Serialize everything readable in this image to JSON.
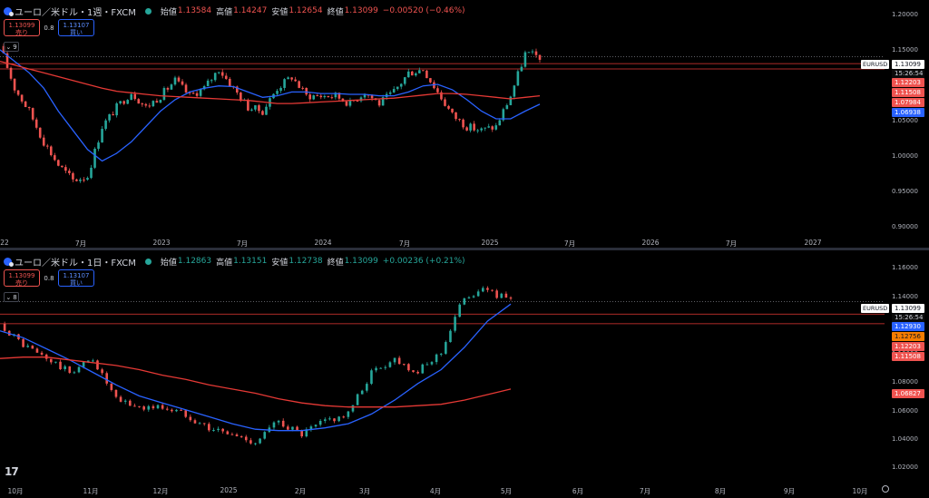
{
  "colors": {
    "up": "#26a69a",
    "down": "#ef5350",
    "ma_fast": "#2962ff",
    "ma_slow": "#e53935",
    "background": "#000000"
  },
  "panes": [
    {
      "id": "weekly",
      "symbol_title": "ユーロ／米ドル・1週・FXCM",
      "ohlc": {
        "open_label": "始値",
        "open": "1.13584",
        "high_label": "高値",
        "high": "1.14247",
        "low_label": "安値",
        "low": "1.12654",
        "close_label": "終値",
        "close": "1.13099",
        "change": "−0.00520 (−0.46%)",
        "change_dir": "down"
      },
      "sell_price": "1.13099",
      "sell_label": "売り",
      "buy_price": "1.13107",
      "buy_label": "買い",
      "spread": "0.8",
      "indicator_count": "9",
      "price_axis": [
        "1.20000",
        "1.15000",
        "1.10000",
        "1.05000",
        "1.00000",
        "0.95000",
        "0.90000"
      ],
      "time_axis": [
        "22",
        "7月",
        "2023",
        "7月",
        "2024",
        "7月",
        "2025",
        "7月",
        "2026",
        "7月",
        "2027"
      ],
      "symbol_tag": "EURUSD",
      "countdown": "15:26:54",
      "price_tags": [
        {
          "value": "1.13099",
          "kind": "last"
        },
        {
          "value": "1.12203",
          "color": "#ef5350"
        },
        {
          "value": "1.11508",
          "color": "#ef5350"
        },
        {
          "value": "1.07984",
          "color": "#ef5350"
        },
        {
          "value": "1.06938",
          "color": "#2962ff"
        }
      ],
      "chart_data": {
        "type": "candlestick",
        "y_range": [
          0.895,
          1.205
        ],
        "x_range": [
          "2022-04",
          "2027-10"
        ],
        "last_close": 1.13099,
        "horizontal_levels": [
          1.12203,
          1.11508
        ],
        "series": [
          {
            "name": "close",
            "x": [
              "2022-04",
              "2022-05",
              "2022-06",
              "2022-07",
              "2022-08",
              "2022-09",
              "2022-10",
              "2022-11",
              "2022-12",
              "2023-01",
              "2023-02",
              "2023-03",
              "2023-04",
              "2023-05",
              "2023-06",
              "2023-07",
              "2023-08",
              "2023-09",
              "2023-10",
              "2023-11",
              "2023-12",
              "2024-01",
              "2024-02",
              "2024-03",
              "2024-04",
              "2024-05",
              "2024-06",
              "2024-07",
              "2024-08",
              "2024-09",
              "2024-10",
              "2024-11",
              "2024-12",
              "2025-01",
              "2025-02",
              "2025-03",
              "2025-04",
              "2025-05"
            ],
            "y": [
              1.145,
              1.09,
              1.06,
              1.02,
              0.99,
              0.97,
              0.975,
              1.04,
              1.065,
              1.085,
              1.065,
              1.08,
              1.1,
              1.08,
              1.09,
              1.115,
              1.09,
              1.065,
              1.06,
              1.09,
              1.105,
              1.08,
              1.08,
              1.08,
              1.07,
              1.085,
              1.07,
              1.085,
              1.11,
              1.115,
              1.085,
              1.055,
              1.04,
              1.035,
              1.04,
              1.08,
              1.135,
              1.131
            ]
          },
          {
            "name": "ma_fast",
            "y": [
              1.14,
              1.125,
              1.11,
              1.09,
              1.06,
              1.035,
              1.01,
              0.995,
              1.005,
              1.02,
              1.04,
              1.06,
              1.075,
              1.085,
              1.09,
              1.093,
              1.092,
              1.085,
              1.078,
              1.08,
              1.085,
              1.085,
              1.083,
              1.083,
              1.082,
              1.082,
              1.08,
              1.08,
              1.085,
              1.093,
              1.095,
              1.088,
              1.075,
              1.06,
              1.05,
              1.05,
              1.06,
              1.069
            ]
          },
          {
            "name": "ma_slow",
            "y": [
              1.125,
              1.12,
              1.115,
              1.11,
              1.105,
              1.1,
              1.095,
              1.09,
              1.086,
              1.084,
              1.082,
              1.08,
              1.079,
              1.078,
              1.077,
              1.076,
              1.075,
              1.074,
              1.072,
              1.07,
              1.07,
              1.071,
              1.072,
              1.073,
              1.074,
              1.075,
              1.076,
              1.077,
              1.079,
              1.081,
              1.083,
              1.083,
              1.082,
              1.08,
              1.078,
              1.076,
              1.078,
              1.08
            ]
          }
        ]
      }
    },
    {
      "id": "daily",
      "symbol_title": "ユーロ／米ドル・1日・FXCM",
      "ohlc": {
        "open_label": "始値",
        "open": "1.12863",
        "high_label": "高値",
        "high": "1.13151",
        "low_label": "安値",
        "low": "1.12738",
        "close_label": "終値",
        "close": "1.13099",
        "change": "+0.00236 (+0.21%)",
        "change_dir": "up"
      },
      "sell_price": "1.13099",
      "sell_label": "売り",
      "buy_price": "1.13107",
      "buy_label": "買い",
      "spread": "0.8",
      "indicator_count": "8",
      "price_axis": [
        "1.16000",
        "1.14000",
        "1.12000",
        "1.10000",
        "1.08000",
        "1.06000",
        "1.04000",
        "1.02000"
      ],
      "time_axis": [
        "10月",
        "11月",
        "12月",
        "2025",
        "2月",
        "3月",
        "4月",
        "5月",
        "6月",
        "7月",
        "8月",
        "9月",
        "10月"
      ],
      "symbol_tag": "EURUSD",
      "countdown": "15:26:54",
      "price_tags": [
        {
          "value": "1.13099",
          "kind": "last"
        },
        {
          "value": "1.12930",
          "color": "#2962ff"
        },
        {
          "value": "1.12756",
          "color": "#f57c00"
        },
        {
          "value": "1.12203",
          "color": "#ef5350"
        },
        {
          "value": "1.11508",
          "color": "#ef5350"
        },
        {
          "value": "1.06827",
          "color": "#ef5350"
        }
      ],
      "chart_data": {
        "type": "candlestick",
        "y_range": [
          1.011,
          1.168
        ],
        "x_range": [
          "2024-10-01",
          "2025-10-10"
        ],
        "last_close": 1.13099,
        "horizontal_levels": [
          1.12203,
          1.11508
        ],
        "series": [
          {
            "name": "close",
            "x": [
              "09-25",
              "10-05",
              "10-15",
              "10-25",
              "11-05",
              "11-15",
              "11-25",
              "12-05",
              "12-15",
              "12-25",
              "01-05",
              "01-15",
              "01-25",
              "02-05",
              "02-15",
              "02-25",
              "03-05",
              "03-15",
              "03-25",
              "04-05",
              "04-15",
              "04-25",
              "05-05"
            ],
            "y": [
              1.115,
              1.1,
              1.09,
              1.08,
              1.09,
              1.06,
              1.055,
              1.055,
              1.05,
              1.04,
              1.035,
              1.03,
              1.045,
              1.035,
              1.045,
              1.05,
              1.08,
              1.09,
              1.08,
              1.095,
              1.135,
              1.14,
              1.131
            ]
          },
          {
            "name": "ma_fast",
            "y": [
              1.11,
              1.105,
              1.097,
              1.089,
              1.08,
              1.071,
              1.063,
              1.058,
              1.053,
              1.048,
              1.043,
              1.039,
              1.038,
              1.038,
              1.04,
              1.043,
              1.05,
              1.06,
              1.072,
              1.082,
              1.098,
              1.117,
              1.1293
            ]
          },
          {
            "name": "ma_slow",
            "y": [
              1.09,
              1.091,
              1.091,
              1.089,
              1.087,
              1.085,
              1.082,
              1.078,
              1.075,
              1.071,
              1.068,
              1.065,
              1.061,
              1.058,
              1.056,
              1.055,
              1.055,
              1.055,
              1.056,
              1.057,
              1.06,
              1.064,
              1.068
            ]
          }
        ]
      }
    }
  ]
}
